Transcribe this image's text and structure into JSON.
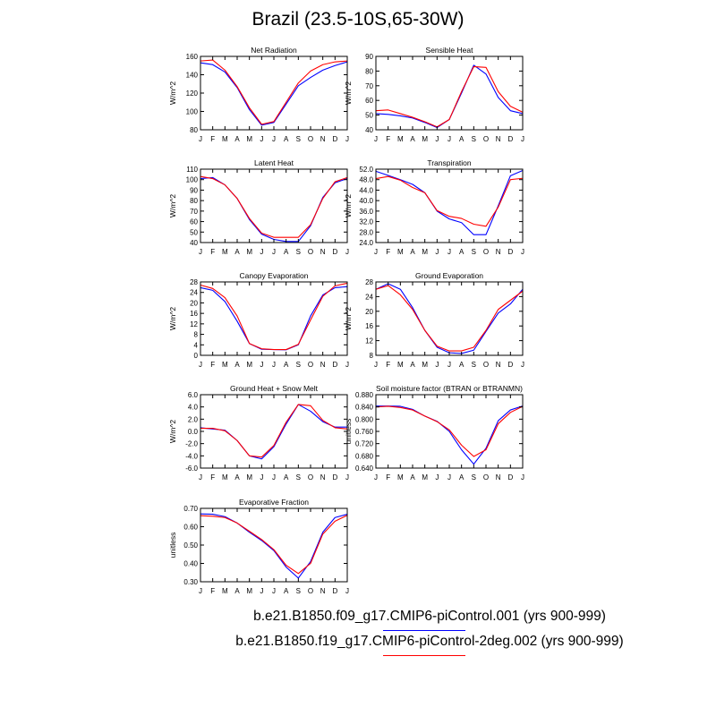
{
  "title": "Brazil (23.5-10S,65-30W)",
  "months": [
    "J",
    "F",
    "M",
    "A",
    "M",
    "J",
    "J",
    "A",
    "S",
    "O",
    "N",
    "D",
    "J"
  ],
  "colors": {
    "series1": "#0000ff",
    "series2": "#ff0000"
  },
  "legend": [
    {
      "label": "b.e21.B1850.f09_g17.CMIP6-piControl.001 (yrs 900-999)",
      "color": "#0000ff"
    },
    {
      "label": "b.e21.B1850.f19_g17.CMIP6-piControl-2deg.002 (yrs 900-999)",
      "color": "#ff0000"
    }
  ],
  "chart_data": [
    {
      "type": "line",
      "title": "Net Radiation",
      "ylabel": "W/m^2",
      "ylim": [
        80,
        160
      ],
      "yticks": [
        "80",
        "100",
        "120",
        "140",
        "160"
      ],
      "ytick_values": [
        80,
        100,
        120,
        140,
        160
      ],
      "series": [
        {
          "values": [
            153,
            151,
            143,
            126,
            102,
            85,
            88,
            108,
            128,
            137,
            145,
            150,
            154
          ]
        },
        {
          "values": [
            155,
            156,
            145,
            127,
            104,
            86,
            89,
            110,
            131,
            144,
            151,
            154,
            155
          ]
        }
      ]
    },
    {
      "type": "line",
      "title": "Sensible Heat",
      "ylabel": "W/m^2",
      "ylim": [
        40,
        90
      ],
      "yticks": [
        "40",
        "50",
        "60",
        "70",
        "80",
        "90"
      ],
      "ytick_values": [
        40,
        50,
        60,
        70,
        80,
        90
      ],
      "series": [
        {
          "values": [
            51,
            50.5,
            49.5,
            48,
            45,
            41.5,
            47,
            65,
            84,
            78,
            62,
            53,
            51
          ]
        },
        {
          "values": [
            53,
            53.5,
            51,
            48.5,
            45.5,
            42,
            47,
            66,
            83,
            82.5,
            66,
            56,
            52
          ]
        }
      ]
    },
    {
      "type": "line",
      "title": "Latent Heat",
      "ylabel": "W/m^2",
      "ylim": [
        40,
        110
      ],
      "yticks": [
        "40",
        "50",
        "60",
        "70",
        "80",
        "90",
        "100",
        "110"
      ],
      "ytick_values": [
        40,
        50,
        60,
        70,
        80,
        90,
        100,
        110
      ],
      "series": [
        {
          "values": [
            101,
            102,
            95,
            82,
            62,
            48,
            43,
            41,
            41,
            56,
            83,
            97,
            101
          ]
        },
        {
          "values": [
            103,
            101,
            95,
            82,
            63,
            49,
            45,
            45,
            45,
            57,
            82,
            98,
            102
          ]
        }
      ]
    },
    {
      "type": "line",
      "title": "Transpiration",
      "ylabel": "W/m^2",
      "ylim": [
        24,
        52
      ],
      "yticks": [
        "24.0",
        "28.0",
        "32.0",
        "36.0",
        "40.0",
        "44.0",
        "48.0",
        "52.0"
      ],
      "ytick_values": [
        24,
        28,
        32,
        36,
        40,
        44,
        48,
        52
      ],
      "series": [
        {
          "values": [
            51.2,
            49.6,
            48,
            46.2,
            43,
            36,
            33,
            31.6,
            27,
            27,
            38,
            49.5,
            51.5
          ]
        },
        {
          "values": [
            48.4,
            49.2,
            47.8,
            45,
            43,
            36.2,
            34,
            33.2,
            31,
            30.2,
            37.5,
            48,
            48.5
          ]
        }
      ]
    },
    {
      "type": "line",
      "title": "Canopy Evaporation",
      "ylabel": "W/m^2",
      "ylim": [
        0,
        28
      ],
      "yticks": [
        "0",
        "4",
        "8",
        "12",
        "16",
        "20",
        "24",
        "28"
      ],
      "ytick_values": [
        0,
        4,
        8,
        12,
        16,
        20,
        24,
        28
      ],
      "series": [
        {
          "values": [
            25.8,
            24.8,
            20.5,
            13,
            4.5,
            2.3,
            2.2,
            2.1,
            4,
            15,
            23,
            25.8,
            26.2
          ]
        },
        {
          "values": [
            26.8,
            25.5,
            22,
            15,
            4.5,
            2.5,
            2.2,
            2.2,
            4.2,
            13.5,
            22.5,
            26.5,
            27.5
          ]
        }
      ]
    },
    {
      "type": "line",
      "title": "Ground Evaporation",
      "ylabel": "W/m^2",
      "ylim": [
        8,
        28
      ],
      "yticks": [
        "8",
        "12",
        "16",
        "20",
        "24",
        "28"
      ],
      "ytick_values": [
        8,
        12,
        16,
        20,
        24,
        28
      ],
      "series": [
        {
          "values": [
            26,
            27.5,
            26,
            21,
            14.8,
            10.2,
            8.7,
            8.5,
            9.4,
            14.5,
            19.5,
            22,
            26
          ]
        },
        {
          "values": [
            26,
            27,
            24.5,
            20.5,
            14.8,
            10.5,
            9.2,
            9.2,
            10.2,
            14.8,
            20.5,
            23,
            25.5
          ]
        }
      ]
    },
    {
      "type": "line",
      "title": "Ground Heat + Snow Melt",
      "ylabel": "W/m^2",
      "ylim": [
        -6,
        6
      ],
      "yticks": [
        "-6.0",
        "-4.0",
        "-2.0",
        "0.0",
        "2.0",
        "4.0",
        "6.0"
      ],
      "ytick_values": [
        -6,
        -4,
        -2,
        0,
        2,
        4,
        6
      ],
      "series": [
        {
          "values": [
            0.6,
            0.4,
            0.2,
            -1.5,
            -4,
            -4.5,
            -2.5,
            1.2,
            4.4,
            3.3,
            1.6,
            0.7,
            0.7
          ]
        },
        {
          "values": [
            0.5,
            0.5,
            0.1,
            -1.5,
            -4,
            -4.2,
            -2.3,
            1.5,
            4.4,
            4.2,
            1.8,
            0.6,
            0.4
          ]
        }
      ]
    },
    {
      "type": "line",
      "title": "Soil moisture factor (BTRAN or BTRANMN)",
      "ylabel": "unitless",
      "ylim": [
        0.64,
        0.88
      ],
      "yticks": [
        "0.640",
        "0.680",
        "0.720",
        "0.760",
        "0.800",
        "0.840",
        "0.880"
      ],
      "ytick_values": [
        0.64,
        0.68,
        0.72,
        0.76,
        0.8,
        0.84,
        0.88
      ],
      "series": [
        {
          "values": [
            0.843,
            0.843,
            0.842,
            0.832,
            0.81,
            0.793,
            0.76,
            0.7,
            0.653,
            0.705,
            0.795,
            0.83,
            0.843
          ]
        },
        {
          "values": [
            0.84,
            0.842,
            0.838,
            0.83,
            0.81,
            0.792,
            0.765,
            0.715,
            0.678,
            0.7,
            0.785,
            0.822,
            0.842
          ]
        }
      ]
    },
    {
      "type": "line",
      "title": "Evaporative Fraction",
      "ylabel": "unitless",
      "ylim": [
        0.3,
        0.7
      ],
      "yticks": [
        "0.30",
        "0.40",
        "0.50",
        "0.60",
        "0.70"
      ],
      "ytick_values": [
        0.3,
        0.4,
        0.5,
        0.6,
        0.7
      ],
      "series": [
        {
          "values": [
            0.67,
            0.668,
            0.655,
            0.62,
            0.57,
            0.525,
            0.47,
            0.38,
            0.32,
            0.41,
            0.57,
            0.65,
            0.668
          ]
        },
        {
          "values": [
            0.66,
            0.657,
            0.65,
            0.62,
            0.575,
            0.53,
            0.475,
            0.39,
            0.345,
            0.4,
            0.56,
            0.63,
            0.662
          ]
        }
      ]
    }
  ]
}
